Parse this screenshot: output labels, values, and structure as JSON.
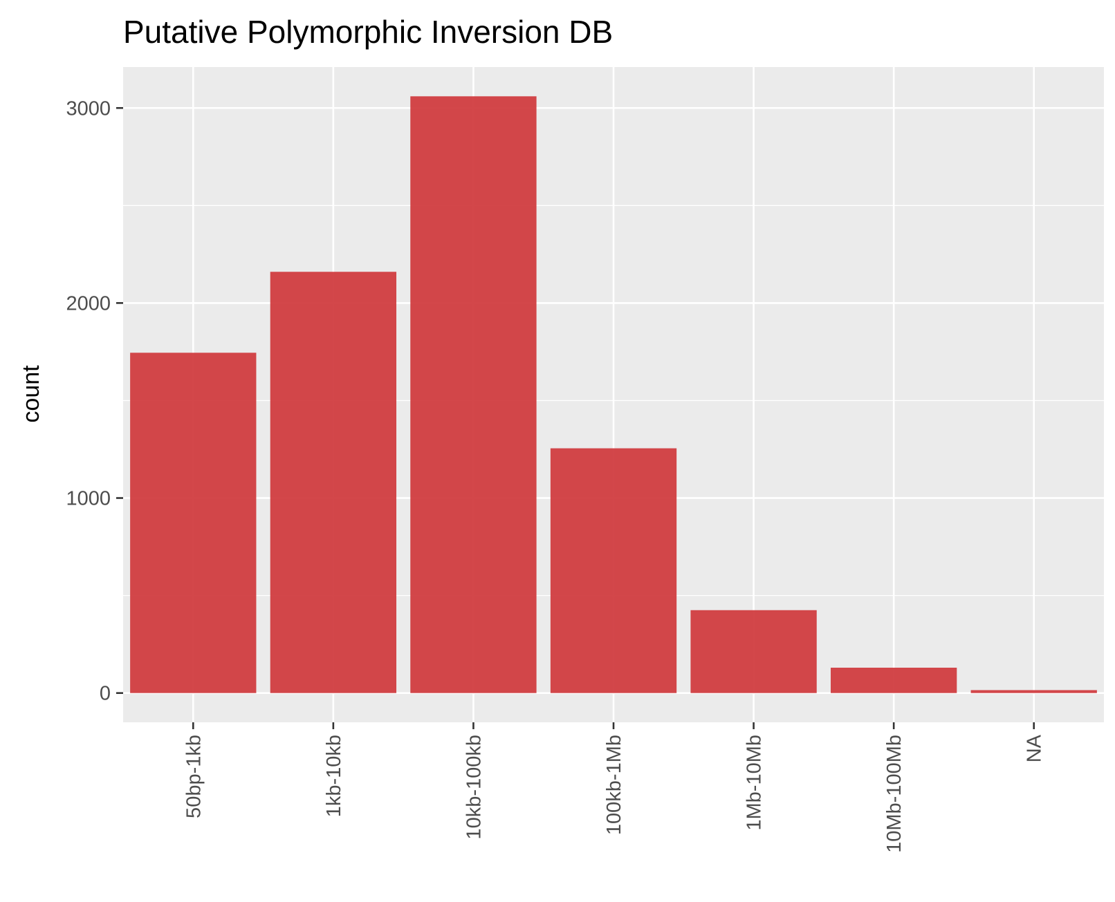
{
  "chart_data": {
    "type": "bar",
    "title": "Putative Polymorphic Inversion DB",
    "xlabel": "",
    "ylabel": "count",
    "categories": [
      "50bp-1kb",
      "1kb-10kb",
      "10kb-100kb",
      "100kb-1Mb",
      "1Mb-10Mb",
      "10Mb-100Mb",
      "NA"
    ],
    "values": [
      1745,
      2160,
      3060,
      1255,
      425,
      130,
      15
    ],
    "ylim": [
      -150,
      3210
    ],
    "yticks": [
      0,
      1000,
      2000,
      3000
    ],
    "y_minor_ticks": [
      500,
      1500,
      2500
    ],
    "grid": true,
    "legend": "none",
    "colors": {
      "bar": "#d0393c",
      "panel_background": "#ebebeb",
      "grid": "#ffffff",
      "tick_mark": "#333333"
    }
  }
}
